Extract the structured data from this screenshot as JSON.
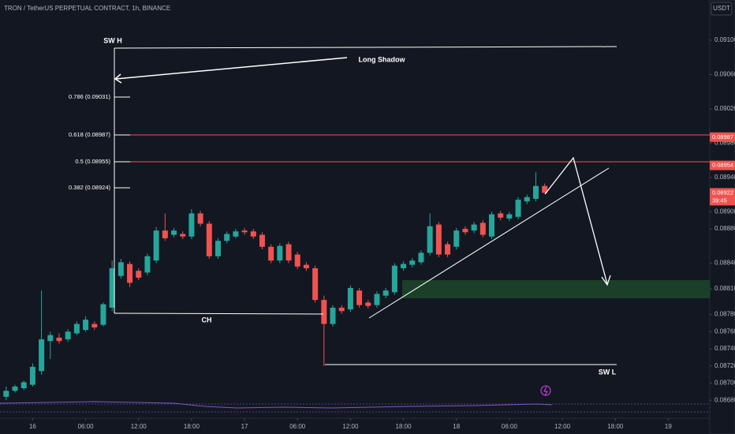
{
  "chart_data": {
    "type": "candlestick",
    "title": "TRON / TetherUS PERPETUAL CONTRACT, 1h, BINANCE",
    "currency": "USDT",
    "up_color": "#26a69a",
    "down_color": "#ef5350",
    "open": [
      0.08684,
      0.08691,
      0.08694,
      0.08698,
      0.08714,
      0.08749,
      0.08753,
      0.08751,
      0.08758,
      0.08762,
      0.08769,
      0.08768,
      0.08788,
      0.08825,
      0.08839,
      0.08831,
      0.08829,
      0.08843,
      0.08878,
      0.08873,
      0.08874,
      0.08871,
      0.08898,
      0.08886,
      0.08848,
      0.08866,
      0.08871,
      0.08878,
      0.08877,
      0.08873,
      0.08859,
      0.08843,
      0.08862,
      0.0885,
      0.08838,
      0.08834,
      0.08797,
      0.08769,
      0.08788,
      0.08786,
      0.08808,
      0.08794,
      0.08791,
      0.08802,
      0.08806,
      0.08834,
      0.08838,
      0.08841,
      0.08852,
      0.08885,
      0.08862,
      0.08859,
      0.0888,
      0.08878,
      0.08887,
      0.08871,
      0.08898,
      0.08892,
      0.08894,
      0.08912,
      0.08915,
      0.0893
    ],
    "high": [
      0.08696,
      0.08698,
      0.08703,
      0.08723,
      0.08808,
      0.0876,
      0.08758,
      0.08763,
      0.08772,
      0.08778,
      0.08772,
      0.08794,
      0.08843,
      0.08845,
      0.08842,
      0.08834,
      0.08851,
      0.08882,
      0.08898,
      0.08881,
      0.08877,
      0.08903,
      0.08901,
      0.08889,
      0.08869,
      0.08877,
      0.0888,
      0.08881,
      0.0888,
      0.08876,
      0.08862,
      0.08863,
      0.08865,
      0.08853,
      0.08841,
      0.08837,
      0.08802,
      0.08791,
      0.08791,
      0.08814,
      0.08811,
      0.08797,
      0.08807,
      0.08811,
      0.0884,
      0.08842,
      0.08846,
      0.08855,
      0.08898,
      0.08888,
      0.08865,
      0.08881,
      0.08883,
      0.08888,
      0.0889,
      0.089,
      0.08901,
      0.089,
      0.08917,
      0.0892,
      0.08946,
      0.08933
    ],
    "low": [
      0.0868,
      0.08689,
      0.08692,
      0.08696,
      0.0871,
      0.08728,
      0.08746,
      0.08748,
      0.08756,
      0.0876,
      0.08762,
      0.08766,
      0.08784,
      0.08822,
      0.08812,
      0.0882,
      0.08826,
      0.0884,
      0.08866,
      0.0887,
      0.08868,
      0.08868,
      0.08883,
      0.08845,
      0.08845,
      0.08863,
      0.08869,
      0.08873,
      0.08868,
      0.08856,
      0.0884,
      0.0884,
      0.0884,
      0.08833,
      0.08831,
      0.08794,
      0.0872,
      0.08766,
      0.08781,
      0.08783,
      0.08788,
      0.08787,
      0.08788,
      0.08799,
      0.08803,
      0.08831,
      0.08835,
      0.08838,
      0.08849,
      0.08847,
      0.08847,
      0.08856,
      0.08873,
      0.08875,
      0.0887,
      0.08868,
      0.0889,
      0.08889,
      0.08891,
      0.08909,
      0.08912,
      0.08922
    ],
    "close": [
      0.08691,
      0.08696,
      0.08701,
      0.08719,
      0.08751,
      0.08756,
      0.08749,
      0.0876,
      0.08769,
      0.08774,
      0.08765,
      0.08792,
      0.08834,
      0.08841,
      0.08817,
      0.08823,
      0.08848,
      0.08878,
      0.08869,
      0.08878,
      0.08871,
      0.08898,
      0.08886,
      0.08848,
      0.08866,
      0.08874,
      0.08877,
      0.08876,
      0.08871,
      0.08859,
      0.08843,
      0.0886,
      0.08843,
      0.08836,
      0.08834,
      0.08797,
      0.08769,
      0.08788,
      0.08784,
      0.08811,
      0.08791,
      0.0879,
      0.08804,
      0.08808,
      0.08837,
      0.08839,
      0.08843,
      0.08852,
      0.08883,
      0.0885,
      0.0885,
      0.08878,
      0.08876,
      0.08885,
      0.08873,
      0.08897,
      0.08893,
      0.08897,
      0.08914,
      0.08917,
      0.0893,
      0.08922
    ],
    "xlim": [
      -0.7,
      79.7
    ],
    "xticks": [
      {
        "value": 3,
        "label": "16"
      },
      {
        "value": 9,
        "label": "06:00"
      },
      {
        "value": 15,
        "label": "12:00"
      },
      {
        "value": 21,
        "label": "18:00"
      },
      {
        "value": 27,
        "label": "17"
      },
      {
        "value": 33,
        "label": "06:00"
      },
      {
        "value": 39,
        "label": "12:00"
      },
      {
        "value": 45,
        "label": "18:00"
      },
      {
        "value": 51,
        "label": "18"
      },
      {
        "value": 57,
        "label": "06:00"
      },
      {
        "value": 63,
        "label": "12:00"
      },
      {
        "value": 69,
        "label": "18:00"
      },
      {
        "value": 75,
        "label": "19"
      }
    ],
    "ylim": [
      0.08659,
      0.09147
    ],
    "yticks": [
      {
        "value": 0.091,
        "label": "0.09100"
      },
      {
        "value": 0.0906,
        "label": "0.09060"
      },
      {
        "value": 0.0902,
        "label": "0.09020"
      },
      {
        "value": 0.0898,
        "label": "0.08980"
      },
      {
        "value": 0.0894,
        "label": "0.08940"
      },
      {
        "value": 0.089,
        "label": "0.08900"
      },
      {
        "value": 0.0888,
        "label": "0.08880"
      },
      {
        "value": 0.0884,
        "label": "0.08840"
      },
      {
        "value": 0.0881,
        "label": "0.08810"
      },
      {
        "value": 0.0878,
        "label": "0.08780"
      },
      {
        "value": 0.0876,
        "label": "0.08760"
      },
      {
        "value": 0.0874,
        "label": "0.08740"
      },
      {
        "value": 0.0872,
        "label": "0.08720"
      },
      {
        "value": 0.087,
        "label": "0.08700"
      },
      {
        "value": 0.0868,
        "label": "0.08680"
      }
    ],
    "price_tags": [
      0.08987,
      0.08954,
      0.08922
    ],
    "countdown": "39:45",
    "annotations": {
      "sw_h": "SW H",
      "long_shadow": "Long Shadow",
      "ch": "CH",
      "sw_l": "SW L"
    },
    "fib_labels": [
      "0.786 (0.09031)",
      "0.618 (0.08987)",
      "0.5 (0.08955)",
      "0.382 (0.08924)"
    ]
  }
}
